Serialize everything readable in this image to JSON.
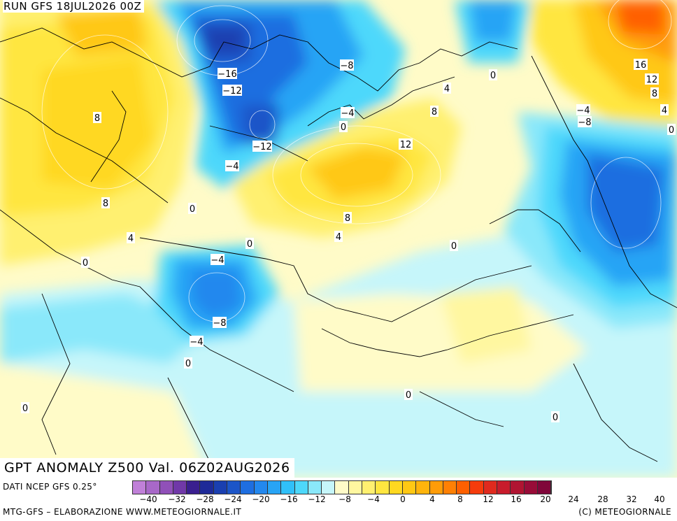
{
  "header": {
    "run_label": "RUN GFS 18JUL2026 00Z"
  },
  "title": "GPT ANOMALY Z500 Val. 06Z02AUG2026",
  "footer": {
    "data_source": "DATI NCEP GFS 0.25°",
    "credits_left": "MTG-GFS – ELABORAZIONE WWW.METEOGIORNALE.IT",
    "credits_right": "(C) METEOGIORNALE"
  },
  "colorbar": {
    "colors": [
      "#c080d8",
      "#a868c8",
      "#9050b8",
      "#7038a8",
      "#3a1f8f",
      "#1e2a98",
      "#1a3fb0",
      "#1c55c8",
      "#1e6ee0",
      "#2388ee",
      "#28a4f5",
      "#30c0fa",
      "#4dd8fb",
      "#8ae8fa",
      "#c6f6fa",
      "#fffbc8",
      "#fff7a0",
      "#fff070",
      "#ffe640",
      "#ffd820",
      "#ffc814",
      "#ffb40c",
      "#ff9c08",
      "#ff8004",
      "#ff6000",
      "#f53c0c",
      "#e02a1e",
      "#c81c2c",
      "#b01432",
      "#980c38",
      "#80063a"
    ],
    "tick_labels": [
      "-40",
      "-32",
      "-28",
      "-24",
      "-20",
      "-16",
      "-12",
      "-8",
      "-4",
      "0",
      "4",
      "8",
      "12",
      "16",
      "20",
      "24",
      "28",
      "32",
      "40"
    ]
  },
  "contour_labels": [
    {
      "text": "-16"
    },
    {
      "text": "-12"
    },
    {
      "text": "-12"
    },
    {
      "text": "-8"
    },
    {
      "text": "-4"
    },
    {
      "text": "0"
    },
    {
      "text": "-4"
    },
    {
      "text": "0"
    },
    {
      "text": "8"
    },
    {
      "text": "12"
    },
    {
      "text": "8"
    },
    {
      "text": "4"
    },
    {
      "text": "4"
    },
    {
      "text": "0"
    },
    {
      "text": "0"
    },
    {
      "text": "-4"
    },
    {
      "text": "-8"
    },
    {
      "text": "-4"
    },
    {
      "text": "0"
    },
    {
      "text": "0"
    },
    {
      "text": "8"
    },
    {
      "text": "8"
    },
    {
      "text": "4"
    },
    {
      "text": "16"
    },
    {
      "text": "12"
    },
    {
      "text": "8"
    },
    {
      "text": "4"
    },
    {
      "text": "-4"
    },
    {
      "text": "-8"
    },
    {
      "text": "0"
    },
    {
      "text": "0"
    },
    {
      "text": "0"
    },
    {
      "text": "0"
    },
    {
      "text": "0"
    }
  ]
}
